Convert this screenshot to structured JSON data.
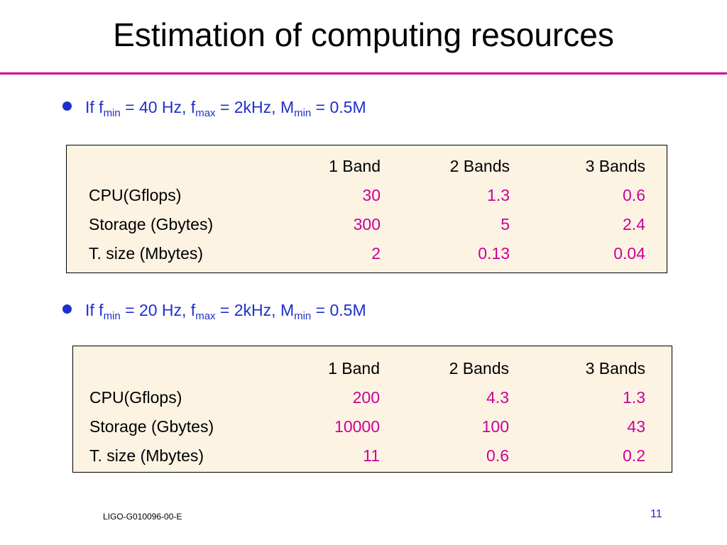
{
  "title": "Estimation of computing resources",
  "bullets": [
    {
      "prefix": "If f",
      "fmin_sub": "min",
      "mid1": " = 40 Hz, f",
      "fmax_sub": "max",
      "mid2": " = 2kHz, M",
      "mmin_sub": "min",
      "suffix": " = 0.5M"
    },
    {
      "prefix": "If f",
      "fmin_sub": "min",
      "mid1": " = 20 Hz, f",
      "fmax_sub": "max",
      "mid2": " = 2kHz, M",
      "mmin_sub": "min",
      "suffix": " = 0.5M"
    }
  ],
  "tables": [
    {
      "headers": [
        "1 Band",
        "2 Bands",
        "3 Bands"
      ],
      "rows": [
        {
          "label": "CPU(Gflops)",
          "values": [
            "30",
            "1.3",
            "0.6"
          ]
        },
        {
          "label": "Storage (Gbytes)",
          "values": [
            "300",
            "5",
            "2.4"
          ]
        },
        {
          "label": "T. size (Mbytes)",
          "values": [
            "2",
            "0.13",
            "0.04"
          ]
        }
      ]
    },
    {
      "headers": [
        "1 Band",
        "2 Bands",
        "3 Bands"
      ],
      "rows": [
        {
          "label": "CPU(Gflops)",
          "values": [
            "200",
            "4.3",
            "1.3"
          ]
        },
        {
          "label": "Storage (Gbytes)",
          "values": [
            "10000",
            "100",
            "43"
          ]
        },
        {
          "label": "T. size (Mbytes)",
          "values": [
            "11",
            "0.6",
            "0.2"
          ]
        }
      ]
    }
  ],
  "footer": {
    "doc_id": "LIGO-G010096-00-E",
    "page_number": "11"
  },
  "colors": {
    "accent_rule": "#cc0099",
    "bullet_text": "#1f2fcc",
    "value_text": "#cc0099",
    "table_bg": "#fdf3e3"
  }
}
